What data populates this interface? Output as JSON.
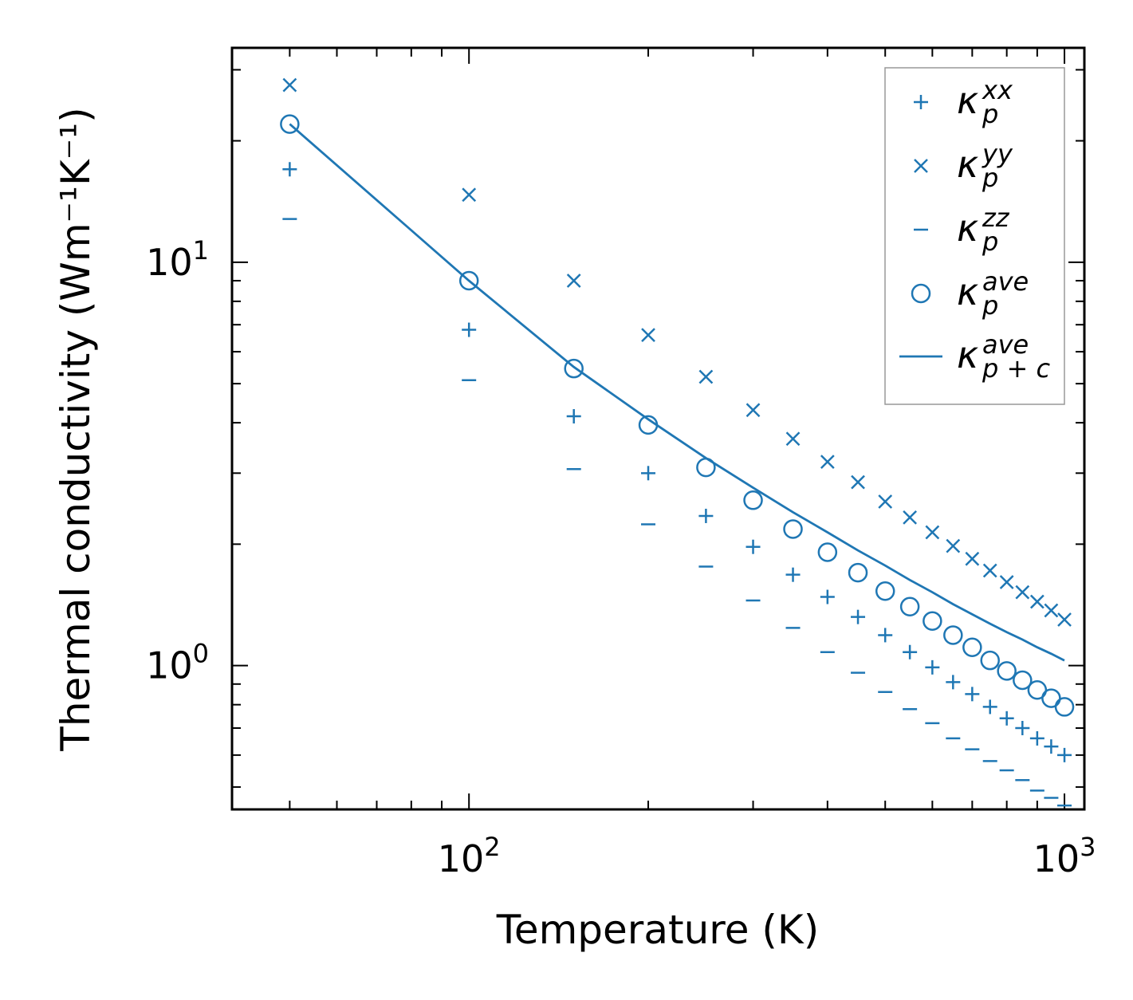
{
  "chart_data": {
    "type": "scatter",
    "scale": {
      "x": "log",
      "y": "log"
    },
    "xlim": [
      40,
      1080
    ],
    "ylim": [
      0.44,
      34
    ],
    "xlabel": "Temperature (K)",
    "ylabel": "Thermal conductivity (Wm⁻¹K⁻¹)",
    "x_ticks": [
      {
        "value": 100,
        "base": "10",
        "exp": "2"
      },
      {
        "value": 1000,
        "base": "10",
        "exp": "3"
      }
    ],
    "y_ticks": [
      {
        "value": 1,
        "base": "10",
        "exp": "0"
      },
      {
        "value": 10,
        "base": "10",
        "exp": "1"
      }
    ],
    "temperatures": [
      50,
      100,
      150,
      200,
      250,
      300,
      350,
      400,
      450,
      500,
      550,
      600,
      650,
      700,
      750,
      800,
      850,
      900,
      950,
      1000
    ],
    "series": [
      {
        "name": "kappa_p_xx",
        "legend_base": "κ",
        "legend_sup": "xx",
        "legend_sub": "p",
        "marker": "plus",
        "values": [
          17.0,
          6.8,
          4.15,
          3.0,
          2.35,
          1.97,
          1.68,
          1.48,
          1.32,
          1.19,
          1.08,
          0.99,
          0.91,
          0.85,
          0.79,
          0.74,
          0.7,
          0.66,
          0.63,
          0.6
        ]
      },
      {
        "name": "kappa_p_yy",
        "legend_base": "κ",
        "legend_sup": "yy",
        "legend_sub": "p",
        "marker": "x",
        "values": [
          27.5,
          14.7,
          9.0,
          6.6,
          5.2,
          4.3,
          3.65,
          3.2,
          2.85,
          2.55,
          2.33,
          2.14,
          1.98,
          1.84,
          1.72,
          1.61,
          1.52,
          1.44,
          1.37,
          1.3
        ]
      },
      {
        "name": "kappa_p_zz",
        "legend_base": "κ",
        "legend_sup": "zz",
        "legend_sub": "p",
        "marker": "dash",
        "values": [
          12.8,
          5.1,
          3.07,
          2.24,
          1.76,
          1.45,
          1.24,
          1.08,
          0.96,
          0.86,
          0.78,
          0.72,
          0.66,
          0.62,
          0.58,
          0.55,
          0.52,
          0.49,
          0.47,
          0.45
        ]
      },
      {
        "name": "kappa_p_ave",
        "legend_base": "κ",
        "legend_sup": "ave",
        "legend_sub": "p",
        "marker": "circle",
        "values": [
          22.0,
          9.0,
          5.45,
          3.95,
          3.1,
          2.57,
          2.18,
          1.91,
          1.7,
          1.53,
          1.4,
          1.29,
          1.19,
          1.11,
          1.03,
          0.97,
          0.92,
          0.87,
          0.83,
          0.79
        ]
      },
      {
        "name": "kappa_p+c_ave",
        "legend_base": "κ",
        "legend_sup": "ave",
        "legend_sub": "p + c",
        "marker": "line",
        "values": [
          22.0,
          9.0,
          5.5,
          4.08,
          3.27,
          2.76,
          2.4,
          2.14,
          1.93,
          1.77,
          1.63,
          1.52,
          1.42,
          1.34,
          1.27,
          1.21,
          1.16,
          1.11,
          1.07,
          1.03
        ]
      }
    ],
    "color": "#1f77b4",
    "legend_position": "top-right"
  }
}
